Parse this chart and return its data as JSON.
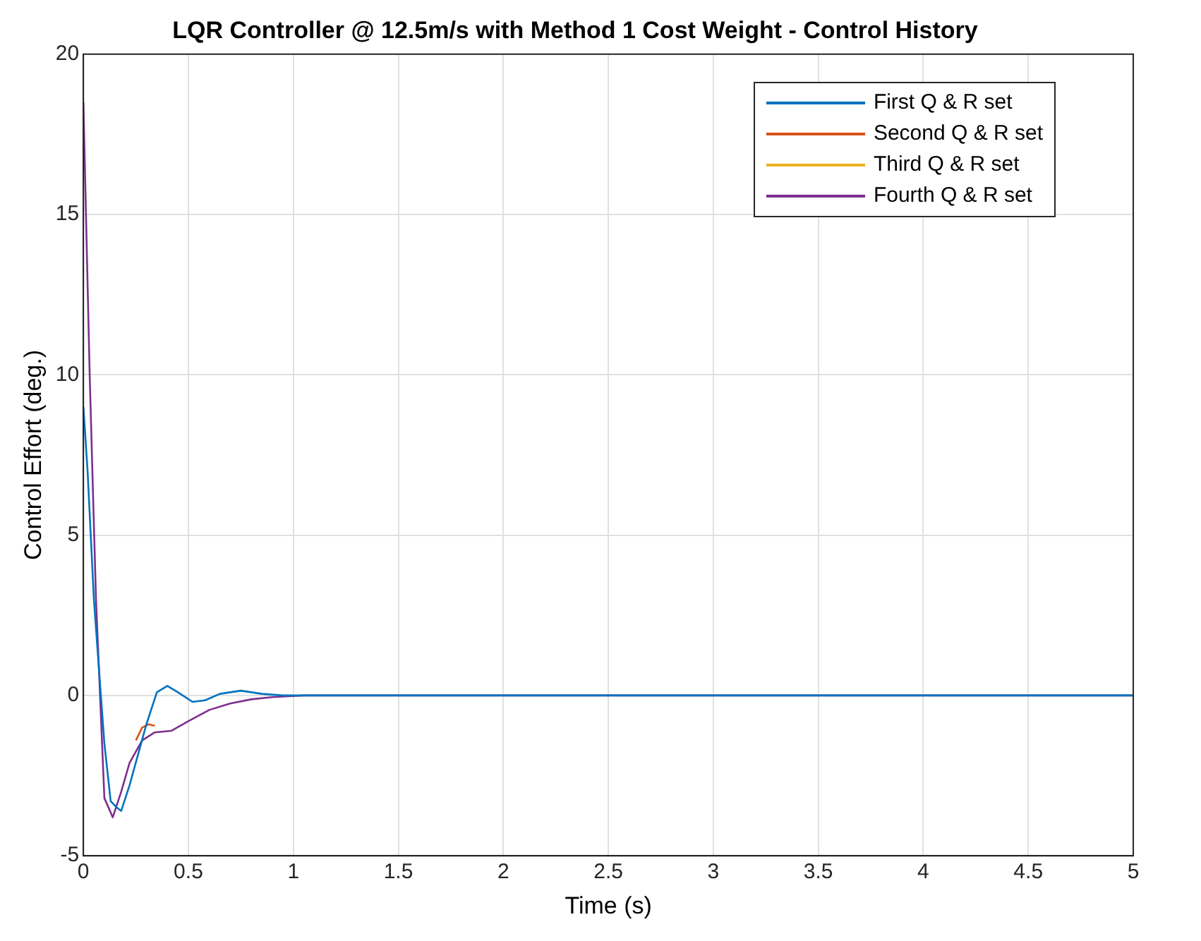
{
  "chart_data": {
    "type": "line",
    "title": "LQR Controller @ 12.5m/s with Method 1 Cost Weight - Control History",
    "xlabel": "Time (s)",
    "ylabel": "Control Effort (deg.)",
    "xlim": [
      0,
      5
    ],
    "xticks": [
      0,
      0.5,
      1,
      1.5,
      2,
      2.5,
      3,
      3.5,
      4,
      4.5,
      5
    ],
    "ylim": [
      -5,
      20
    ],
    "yticks": [
      -5,
      0,
      5,
      10,
      15,
      20
    ],
    "grid": true,
    "legend": "top right",
    "marker": "none",
    "line_style": "solid",
    "series": [
      {
        "name": "First Q & R set",
        "color": "#0072bd",
        "x": [
          0,
          0.02,
          0.05,
          0.1,
          0.13,
          0.16,
          0.18,
          0.22,
          0.3,
          0.35,
          0.4,
          0.45,
          0.52,
          0.58,
          0.65,
          0.75,
          0.85,
          0.95,
          1.2,
          5
        ],
        "values": [
          9,
          7,
          3,
          -1.5,
          -3.3,
          -3.5,
          -3.6,
          -2.8,
          -0.9,
          0.1,
          0.3,
          0.1,
          -0.2,
          -0.15,
          0.05,
          0.15,
          0.05,
          0,
          0,
          0
        ]
      },
      {
        "name": "Second Q & R set",
        "color": "#d95319",
        "x": [
          0.25,
          0.28,
          0.31,
          0.34
        ],
        "values": [
          -1.4,
          -1,
          -0.9,
          -0.95
        ]
      },
      {
        "name": "Third Q & R set",
        "color": "#edb120"
      },
      {
        "name": "Fourth Q & R set",
        "color": "#7e2f8e",
        "x": [
          0,
          0.03,
          0.06,
          0.1,
          0.14,
          0.18,
          0.22,
          0.28,
          0.34,
          0.42,
          0.5,
          0.6,
          0.7,
          0.8,
          0.9,
          1.05,
          5
        ],
        "values": [
          18.5,
          10,
          3,
          -3.2,
          -3.8,
          -3,
          -2.1,
          -1.4,
          -1.15,
          -1.1,
          -0.8,
          -0.45,
          -0.25,
          -0.12,
          -0.05,
          0,
          0
        ]
      }
    ]
  }
}
